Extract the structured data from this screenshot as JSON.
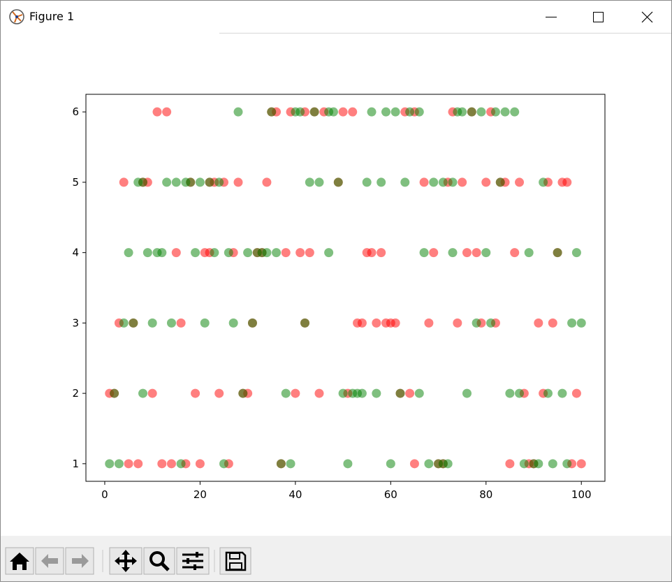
{
  "window": {
    "title": "Figure 1"
  },
  "chart_data": {
    "type": "scatter",
    "xlim": [
      -3.95,
      104.95
    ],
    "ylim": [
      0.75,
      6.25
    ],
    "xticks": [
      0,
      20,
      40,
      60,
      80,
      100
    ],
    "yticks": [
      1,
      2,
      3,
      4,
      5,
      6
    ],
    "marker_alpha": 0.5,
    "series": [
      {
        "color": "#ff0000",
        "x": [
          11,
          13,
          35,
          36,
          39,
          42,
          44,
          46,
          50,
          52,
          63,
          65,
          73,
          77,
          81,
          4,
          8,
          9,
          18,
          22,
          23,
          25,
          28,
          34,
          49,
          67,
          72,
          75,
          80,
          83,
          84,
          87,
          93,
          96,
          97,
          15,
          21,
          22,
          27,
          32,
          33,
          38,
          41,
          43,
          55,
          56,
          58,
          69,
          76,
          78,
          86,
          95,
          3,
          6,
          16,
          31,
          42,
          53,
          54,
          57,
          59,
          60,
          61,
          68,
          74,
          79,
          82,
          91,
          94,
          1,
          2,
          10,
          19,
          24,
          29,
          30,
          40,
          45,
          51,
          62,
          64,
          88,
          92,
          99,
          5,
          7,
          12,
          14,
          17,
          20,
          26,
          37,
          65,
          70,
          71,
          85,
          89,
          90,
          98,
          100
        ],
        "values": [
          6,
          6,
          6,
          6,
          6,
          6,
          6,
          6,
          6,
          6,
          6,
          6,
          6,
          6,
          6,
          5,
          5,
          5,
          5,
          5,
          5,
          5,
          5,
          5,
          5,
          5,
          5,
          5,
          5,
          5,
          5,
          5,
          5,
          5,
          5,
          4,
          4,
          4,
          4,
          4,
          4,
          4,
          4,
          4,
          4,
          4,
          4,
          4,
          4,
          4,
          4,
          4,
          3,
          3,
          3,
          3,
          3,
          3,
          3,
          3,
          3,
          3,
          3,
          3,
          3,
          3,
          3,
          3,
          3,
          2,
          2,
          2,
          2,
          2,
          2,
          2,
          2,
          2,
          2,
          2,
          2,
          2,
          2,
          2,
          1,
          1,
          1,
          1,
          1,
          1,
          1,
          1,
          1,
          1,
          1,
          1,
          1,
          1,
          1,
          1
        ]
      },
      {
        "color": "#008000",
        "x": [
          28,
          35,
          40,
          41,
          44,
          47,
          48,
          56,
          59,
          61,
          64,
          66,
          74,
          75,
          77,
          79,
          82,
          84,
          86,
          7,
          8,
          13,
          15,
          17,
          18,
          20,
          22,
          24,
          43,
          45,
          49,
          55,
          58,
          63,
          69,
          71,
          73,
          83,
          92,
          5,
          9,
          11,
          12,
          19,
          23,
          26,
          30,
          32,
          33,
          34,
          36,
          47,
          67,
          73,
          80,
          89,
          95,
          99,
          4,
          6,
          10,
          14,
          21,
          27,
          31,
          42,
          78,
          81,
          98,
          100,
          2,
          8,
          29,
          38,
          50,
          52,
          53,
          54,
          57,
          62,
          66,
          76,
          85,
          87,
          93,
          96,
          1,
          3,
          16,
          25,
          37,
          39,
          51,
          60,
          68,
          70,
          71,
          72,
          88,
          90,
          91,
          94,
          97
        ],
        "values": [
          6,
          6,
          6,
          6,
          6,
          6,
          6,
          6,
          6,
          6,
          6,
          6,
          6,
          6,
          6,
          6,
          6,
          6,
          6,
          5,
          5,
          5,
          5,
          5,
          5,
          5,
          5,
          5,
          5,
          5,
          5,
          5,
          5,
          5,
          5,
          5,
          5,
          5,
          5,
          4,
          4,
          4,
          4,
          4,
          4,
          4,
          4,
          4,
          4,
          4,
          4,
          4,
          4,
          4,
          4,
          4,
          4,
          4,
          3,
          3,
          3,
          3,
          3,
          3,
          3,
          3,
          3,
          3,
          3,
          3,
          2,
          2,
          2,
          2,
          2,
          2,
          2,
          2,
          2,
          2,
          2,
          2,
          2,
          2,
          2,
          2,
          1,
          1,
          1,
          1,
          1,
          1,
          1,
          1,
          1,
          1,
          1,
          1,
          1,
          1,
          1,
          1,
          1
        ]
      }
    ]
  }
}
